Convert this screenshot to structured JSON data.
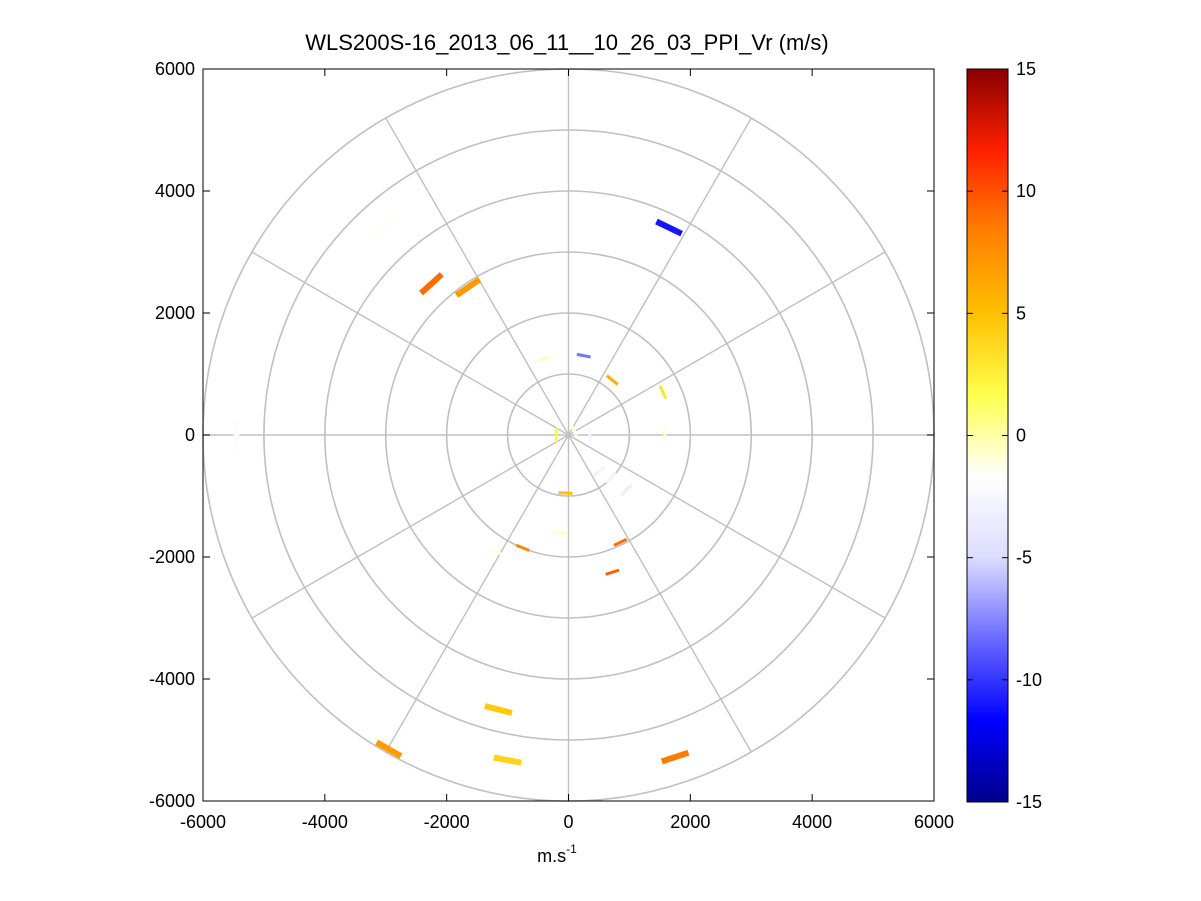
{
  "figure": {
    "title": "WLS200S-16_2013_06_11__10_26_03_PPI_Vr (m/s)",
    "xlabel_main": "m.s",
    "xlabel_sup": "-1"
  },
  "chart_data": {
    "type": "scatter",
    "plot_kind": "polar PPI radial velocity",
    "title": "WLS200S-16_2013_06_11__10_26_03_PPI_Vr (m/s)",
    "xlabel": "m.s-1",
    "ylabel": "",
    "xlim": [
      -6000,
      6000
    ],
    "ylim": [
      -6000,
      6000
    ],
    "x_ticks": [
      "-6000",
      "-4000",
      "-2000",
      "0",
      "2000",
      "4000",
      "6000"
    ],
    "y_ticks": [
      "6000",
      "4000",
      "2000",
      "0",
      "-2000",
      "-4000",
      "-6000"
    ],
    "polar_grid": {
      "ring_radii": [
        1000,
        2000,
        3000,
        4000,
        5000,
        6000
      ],
      "spoke_angles_deg": [
        0,
        30,
        60,
        90,
        120,
        150,
        180,
        210,
        240,
        270,
        300,
        330
      ]
    },
    "colorbar": {
      "min": -15,
      "max": 15,
      "ticks": [
        "15",
        "10",
        "5",
        "0",
        "-5",
        "-10",
        "-15"
      ],
      "colormap": "blue-white-yellow-red",
      "colors": [
        "#00008b",
        "#0000ff",
        "#6a6aff",
        "#dcdcff",
        "#ffffff",
        "#ffff4d",
        "#ffc000",
        "#ff8000",
        "#ff2000",
        "#8b0000"
      ]
    },
    "points": [
      {
        "x": -5450,
        "y": 0,
        "v": -2.0
      },
      {
        "x": -3050,
        "y": 3400,
        "v": -1.5
      },
      {
        "x": 1650,
        "y": 3400,
        "v": -11.0
      },
      {
        "x": -2250,
        "y": 2480,
        "v": 9.0
      },
      {
        "x": -1650,
        "y": 2420,
        "v": 7.0
      },
      {
        "x": -400,
        "y": 1250,
        "v": -0.5
      },
      {
        "x": 250,
        "y": 1300,
        "v": -8.0
      },
      {
        "x": 720,
        "y": 900,
        "v": 6.0
      },
      {
        "x": 1550,
        "y": 700,
        "v": 3.0
      },
      {
        "x": 1580,
        "y": 30,
        "v": -1.0
      },
      {
        "x": 700,
        "y": -700,
        "v": -3.0
      },
      {
        "x": 950,
        "y": -900,
        "v": -3.5
      },
      {
        "x": 500,
        "y": -600,
        "v": -3.0
      },
      {
        "x": 350,
        "y": 0,
        "v": -2.5
      },
      {
        "x": 100,
        "y": 50,
        "v": -1.0
      },
      {
        "x": -200,
        "y": 0,
        "v": 2.0
      },
      {
        "x": -1200,
        "y": -1900,
        "v": -1.0
      },
      {
        "x": -750,
        "y": -1850,
        "v": 8.0
      },
      {
        "x": -150,
        "y": -1600,
        "v": -0.5
      },
      {
        "x": 850,
        "y": -1760,
        "v": 9.0
      },
      {
        "x": 720,
        "y": -2250,
        "v": 9.5
      },
      {
        "x": -1150,
        "y": -4500,
        "v": 4.5
      },
      {
        "x": -1000,
        "y": -5330,
        "v": 4.0
      },
      {
        "x": -2950,
        "y": -5150,
        "v": 7.0
      },
      {
        "x": 1750,
        "y": -5280,
        "v": 8.5
      },
      {
        "x": -50,
        "y": -950,
        "v": 5.0
      }
    ]
  }
}
